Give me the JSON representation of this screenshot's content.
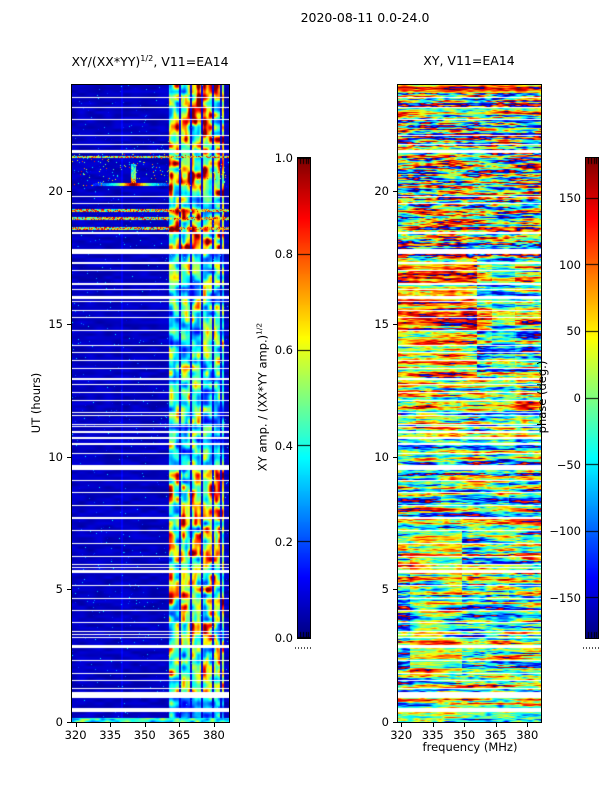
{
  "figure": {
    "title": "2020-08-11 0.0-24.0"
  },
  "panels": {
    "left": {
      "title_pre": "XY/(XX*YY)",
      "title_sup": "1/2",
      "title_post": ", V11=EA14"
    },
    "right": {
      "title": "XY, V11=EA14"
    },
    "xlabel": "frequency (MHz)",
    "ylabel": "UT (hours)"
  },
  "colorbars": {
    "amp": {
      "label_pre": "XY amp. / (XX*YY amp.)",
      "label_sup": "1/2"
    },
    "phase": {
      "label": "phase (deg.)"
    }
  },
  "colors": {
    "background": "#ffffff",
    "frame": "#000000",
    "gap_rows": "#ffffff",
    "colormap_low": "#00008f",
    "colormap_high": "#8f0000"
  },
  "time_gaps": {
    "minor_probability": 0.04,
    "major": [
      [
        23.55,
        1
      ],
      [
        23.17,
        1
      ],
      [
        22.72,
        1
      ],
      [
        21.51,
        2
      ],
      [
        19.82,
        1
      ],
      [
        19.55,
        1
      ],
      [
        18.46,
        2
      ],
      [
        17.82,
        5
      ],
      [
        17.33,
        2
      ],
      [
        17.03,
        1
      ],
      [
        16.54,
        2
      ],
      [
        16.05,
        3
      ],
      [
        15.52,
        1
      ],
      [
        14.77,
        1
      ],
      [
        14.2,
        1
      ],
      [
        13.94,
        1
      ],
      [
        13.64,
        1
      ],
      [
        13.34,
        1
      ],
      [
        12.96,
        2
      ],
      [
        12.43,
        1
      ],
      [
        12.13,
        1
      ],
      [
        11.68,
        1
      ],
      [
        11.23,
        1
      ],
      [
        10.96,
        2
      ],
      [
        10.74,
        2
      ],
      [
        10.51,
        2
      ],
      [
        10.13,
        1
      ],
      [
        9.68,
        5
      ],
      [
        9.12,
        1
      ],
      [
        8.67,
        1
      ],
      [
        8.18,
        1
      ],
      [
        7.72,
        2
      ],
      [
        7.23,
        1
      ],
      [
        6.74,
        1
      ],
      [
        6.25,
        1
      ],
      [
        5.73,
        3
      ],
      [
        5.16,
        1
      ],
      [
        4.67,
        1
      ],
      [
        4.22,
        1
      ],
      [
        3.77,
        1
      ],
      [
        3.32,
        1
      ],
      [
        2.9,
        3
      ],
      [
        2.34,
        1
      ],
      [
        1.85,
        1
      ],
      [
        1.13,
        6
      ],
      [
        0.53,
        4
      ]
    ]
  },
  "chart_data": [
    {
      "type": "heatmap",
      "id": "amp_ratio",
      "title": "XY/(XX*YY)^(1/2), V11=EA14",
      "colormap": "jet",
      "description": "Cross-correlation amplitude ratio dynamic spectrum; dark-blue background near 0.05, bright RFI band ~362-384 MHz, speckled red rows near 18.6-21.3 UT, compact burst with horizontal red wings near 20.3 UT at ~345 MHz, bright blue band at 0 UT, white horizontal data-gap rows.",
      "x_axis": {
        "label": "frequency (MHz)",
        "range_mhz": [
          318,
          387
        ],
        "ticks": [
          320,
          335,
          350,
          365,
          380
        ]
      },
      "y_axis": {
        "label": "UT (hours)",
        "range_hours": [
          0,
          24
        ],
        "ticks": [
          0,
          5,
          10,
          15,
          20
        ]
      },
      "colorbar": {
        "label": "XY amp. / (XX*YY amp.)^(1/2)",
        "range": [
          0.0,
          1.0
        ],
        "ticks": [
          1.0,
          0.8,
          0.6,
          0.4,
          0.2,
          0.0
        ],
        "tick_labels": [
          "1.0",
          "0.8",
          "0.6",
          "0.4",
          "0.2",
          "0.0"
        ]
      },
      "background_level": 0.05,
      "faint_line_fraction": 0.32,
      "bottom_bright_hours": 0.18,
      "red_rows_hours": [
        21.3,
        19.3,
        19.0,
        18.6
      ],
      "speckle_rows_hours": [
        20.2,
        21.45
      ],
      "burst": {
        "start_hour": 20.2,
        "end_hour": 21.05,
        "freq_fraction": 0.39,
        "wing_hours": [
          20.2,
          20.34
        ],
        "wing_span_fraction": [
          0.13,
          0.63
        ]
      },
      "rfi_band": {
        "freq_fraction_stripes": [
          [
            0.62,
            0.683
          ],
          [
            0.695,
            0.752
          ],
          [
            0.768,
            0.822
          ],
          [
            0.838,
            0.893
          ],
          [
            0.905,
            0.947
          ],
          [
            0.957,
            0.973
          ]
        ],
        "time_envelope": [
          [
            0,
            1,
            0.45
          ],
          [
            1,
            9.5,
            0.85
          ],
          [
            9.5,
            17.7,
            0.62
          ],
          [
            17.7,
            24,
            0.95
          ]
        ]
      }
    },
    {
      "type": "heatmap",
      "id": "phase",
      "title": "XY, V11=EA14",
      "colormap": "jet",
      "description": "Cross-correlation phase dynamic spectrum; streaky random phase noise spanning full jet range, coherent red (+150 deg) region 13-17.5 UT below ~355 MHz, teal/cyan regions 0-13 UT with patchy red and orange blobs, red rows at top (23-24 UT), white data-gap rows shared with the amplitude panel.",
      "x_axis": {
        "label": "frequency (MHz)",
        "range_mhz": [
          318,
          387
        ],
        "ticks": [
          320,
          335,
          350,
          365,
          380
        ]
      },
      "y_axis": {
        "label": "",
        "range_hours": [
          0,
          24
        ],
        "ticks": [
          0,
          5,
          10,
          15,
          20
        ]
      },
      "colorbar": {
        "label": "phase (deg.)",
        "range": [
          -180,
          180
        ],
        "ticks": [
          150,
          100,
          50,
          0,
          -50,
          -100,
          -150
        ],
        "tick_labels": [
          "150",
          "100",
          "50",
          "0",
          "−50",
          "−100",
          "−150"
        ]
      },
      "noise": {
        "row_amp": 143,
        "streak_amp": 330,
        "speckle_amp": 200,
        "blob_amp": 120
      },
      "regions": [
        {
          "hours": [
            23.72,
            24
          ],
          "freq": [
            0,
            1
          ],
          "bias_deg": 160,
          "strength": 0.65
        },
        {
          "hours": [
            22.9,
            23.18
          ],
          "freq": [
            0,
            1
          ],
          "bias_deg": 150,
          "strength": 0.45
        },
        {
          "hours": [
            13.0,
            17.5
          ],
          "freq": [
            0,
            0.55
          ],
          "bias_deg": 150,
          "strength": 0.55
        },
        {
          "hours": [
            13.0,
            17.5
          ],
          "freq": [
            0.55,
            1
          ],
          "bias_deg": -40,
          "strength": 0.4
        },
        {
          "hours": [
            13.2,
            17.45
          ],
          "freq": [
            0.66,
            0.82
          ],
          "bias_deg": -125,
          "strength": 0.3
        },
        {
          "hours": [
            9.4,
            12.9
          ],
          "freq": [
            0,
            1
          ],
          "bias_deg": -45,
          "strength": 0.4
        },
        {
          "hours": [
            10.85,
            12.3
          ],
          "freq": [
            0.12,
            0.42
          ],
          "bias_deg": 150,
          "strength": 0.4,
          "patchy": true
        },
        {
          "hours": [
            0,
            9.3
          ],
          "freq": [
            0,
            1
          ],
          "bias_deg": -45,
          "strength": 0.38
        },
        {
          "hours": [
            8.25,
            9.3
          ],
          "freq": [
            0.3,
            0.78
          ],
          "bias_deg": 150,
          "strength": 0.35,
          "patchy": true
        },
        {
          "hours": [
            1.8,
            7.2
          ],
          "freq": [
            0.08,
            0.45
          ],
          "bias_deg": 155,
          "strength": 0.5,
          "patchy": true
        },
        {
          "hours": [
            3.8,
            6.3
          ],
          "freq": [
            0.56,
            0.78
          ],
          "bias_deg": 120,
          "strength": 0.45,
          "patchy": true
        },
        {
          "hours": [
            0.12,
            0.62
          ],
          "freq": [
            0,
            1
          ],
          "bias_deg": 70,
          "strength": 0.3
        }
      ]
    }
  ]
}
